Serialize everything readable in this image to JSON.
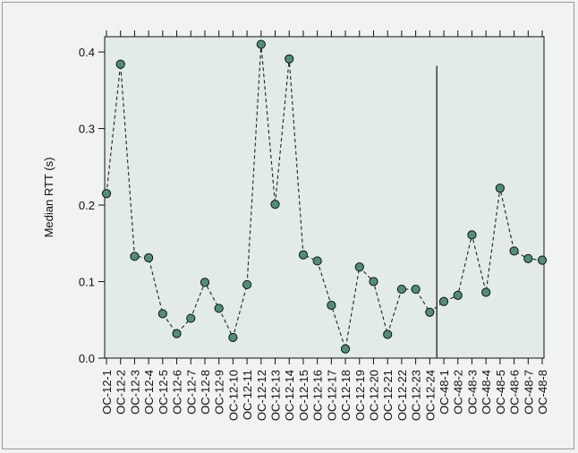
{
  "chart_data": {
    "type": "line",
    "title": "",
    "xlabel": "",
    "ylabel": "Median RTT (s)",
    "ylim": [
      0,
      0.42
    ],
    "yticks": [
      "0.0",
      "0.1",
      "0.2",
      "0.3",
      "0.4"
    ],
    "grid": false,
    "legend": "none",
    "categories": [
      "OC-12-1",
      "OC-12-2",
      "OC-12-3",
      "OC-12-4",
      "OC-12-5",
      "OC-12-6",
      "OC-12-7",
      "OC-12-8",
      "OC-12-9",
      "OC-12-10",
      "OC-12-11",
      "OC-12-12",
      "OC-12-13",
      "OC-12-14",
      "OC-12-15",
      "OC-12-16",
      "OC-12-17",
      "OC-12-18",
      "OC-12-19",
      "OC-12-20",
      "OC-12-21",
      "OC-12-22",
      "OC-12-23",
      "OC-12-24",
      "OC-48-1",
      "OC-48-2",
      "OC-48-3",
      "OC-48-4",
      "OC-48-5",
      "OC-48-6",
      "OC-48-7",
      "OC-48-8"
    ],
    "series": [
      {
        "values": [
          0.215,
          0.384,
          0.133,
          0.131,
          0.058,
          0.032,
          0.052,
          0.099,
          0.065,
          0.027,
          0.096,
          0.41,
          0.201,
          0.391,
          0.135,
          0.127,
          0.069,
          0.012,
          0.119,
          0.1,
          0.031,
          0.09,
          0.09,
          0.06,
          0.074,
          0.082,
          0.161,
          0.086,
          0.222,
          0.14,
          0.13,
          0.128
        ],
        "marker": "circle",
        "line_style": "dashed"
      }
    ],
    "separator_after": "OC-12-24",
    "colors": {
      "plot_background": "#e2ebe9",
      "marker_fill": "#4f8f79",
      "line": "#222222"
    }
  }
}
